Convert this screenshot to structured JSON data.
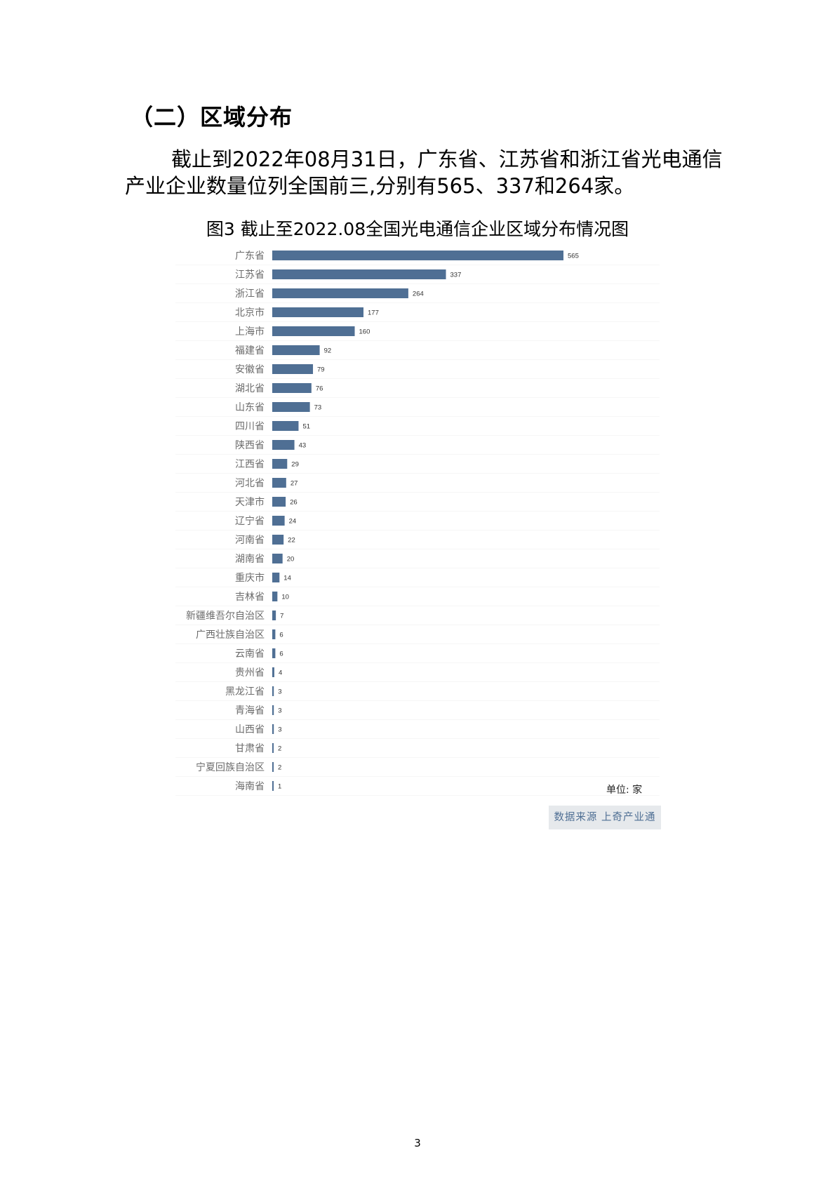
{
  "section_heading": "（二）区域分布",
  "paragraph": "截止到2022年08月31日，广东省、江苏省和浙江省光电通信产业企业数量位列全国前三,分别有565、337和264家。",
  "chart_data": {
    "type": "bar",
    "orientation": "horizontal",
    "title": "图3 截止至2022.08全国光电通信企业区域分布情况图",
    "unit": "单位: 家",
    "source": "数据来源 上奇产业通",
    "bar_color": "#4f6f94",
    "categories": [
      "广东省",
      "江苏省",
      "浙江省",
      "北京市",
      "上海市",
      "福建省",
      "安徽省",
      "湖北省",
      "山东省",
      "四川省",
      "陕西省",
      "江西省",
      "河北省",
      "天津市",
      "辽宁省",
      "河南省",
      "湖南省",
      "重庆市",
      "吉林省",
      "新疆维吾尔自治区",
      "广西壮族自治区",
      "云南省",
      "贵州省",
      "黑龙江省",
      "青海省",
      "山西省",
      "甘肃省",
      "宁夏回族自治区",
      "海南省"
    ],
    "values": [
      565,
      337,
      264,
      177,
      160,
      92,
      79,
      76,
      73,
      51,
      43,
      29,
      27,
      26,
      24,
      22,
      20,
      14,
      10,
      7,
      6,
      6,
      4,
      3,
      3,
      3,
      2,
      2,
      1
    ]
  },
  "page_number": "3"
}
